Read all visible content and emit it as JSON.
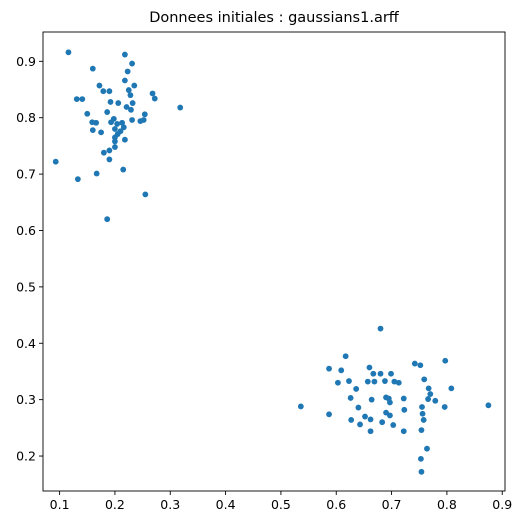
{
  "chart_data": {
    "type": "scatter",
    "title": "Donnees initiales : gaussians1.arff",
    "xlabel": "",
    "ylabel": "",
    "xlim": [
      0.07,
      0.905
    ],
    "ylim": [
      0.138,
      0.952
    ],
    "x_ticks": [
      "0.1",
      "0.2",
      "0.3",
      "0.4",
      "0.5",
      "0.6",
      "0.7",
      "0.8",
      "0.9"
    ],
    "y_ticks": [
      "0.2",
      "0.3",
      "0.4",
      "0.5",
      "0.6",
      "0.7",
      "0.8",
      "0.9"
    ],
    "grid": false,
    "marker_color": "#1f77b4",
    "series": [
      {
        "points": [
          [
            0.116,
            0.916
          ],
          [
            0.218,
            0.912
          ],
          [
            0.231,
            0.896
          ],
          [
            0.16,
            0.887
          ],
          [
            0.223,
            0.882
          ],
          [
            0.218,
            0.866
          ],
          [
            0.172,
            0.857
          ],
          [
            0.235,
            0.857
          ],
          [
            0.179,
            0.847
          ],
          [
            0.19,
            0.847
          ],
          [
            0.225,
            0.849
          ],
          [
            0.228,
            0.84
          ],
          [
            0.268,
            0.843
          ],
          [
            0.272,
            0.834
          ],
          [
            0.131,
            0.833
          ],
          [
            0.141,
            0.833
          ],
          [
            0.192,
            0.828
          ],
          [
            0.206,
            0.826
          ],
          [
            0.232,
            0.826
          ],
          [
            0.221,
            0.819
          ],
          [
            0.318,
            0.818
          ],
          [
            0.229,
            0.814
          ],
          [
            0.186,
            0.81
          ],
          [
            0.15,
            0.807
          ],
          [
            0.254,
            0.806
          ],
          [
            0.198,
            0.798
          ],
          [
            0.231,
            0.796
          ],
          [
            0.246,
            0.794
          ],
          [
            0.252,
            0.796
          ],
          [
            0.159,
            0.792
          ],
          [
            0.166,
            0.791
          ],
          [
            0.193,
            0.792
          ],
          [
            0.213,
            0.791
          ],
          [
            0.204,
            0.789
          ],
          [
            0.216,
            0.783
          ],
          [
            0.2,
            0.78
          ],
          [
            0.16,
            0.778
          ],
          [
            0.175,
            0.774
          ],
          [
            0.21,
            0.776
          ],
          [
            0.205,
            0.771
          ],
          [
            0.2,
            0.765
          ],
          [
            0.218,
            0.761
          ],
          [
            0.2,
            0.758
          ],
          [
            0.2,
            0.748
          ],
          [
            0.19,
            0.742
          ],
          [
            0.18,
            0.738
          ],
          [
            0.19,
            0.726
          ],
          [
            0.093,
            0.722
          ],
          [
            0.215,
            0.708
          ],
          [
            0.167,
            0.701
          ],
          [
            0.133,
            0.691
          ],
          [
            0.255,
            0.664
          ],
          [
            0.186,
            0.62
          ]
        ]
      },
      {
        "points": [
          [
            0.68,
            0.426
          ],
          [
            0.617,
            0.377
          ],
          [
            0.797,
            0.369
          ],
          [
            0.742,
            0.364
          ],
          [
            0.752,
            0.361
          ],
          [
            0.587,
            0.355
          ],
          [
            0.66,
            0.357
          ],
          [
            0.609,
            0.352
          ],
          [
            0.667,
            0.346
          ],
          [
            0.68,
            0.346
          ],
          [
            0.699,
            0.346
          ],
          [
            0.688,
            0.333
          ],
          [
            0.759,
            0.336
          ],
          [
            0.603,
            0.33
          ],
          [
            0.623,
            0.333
          ],
          [
            0.657,
            0.332
          ],
          [
            0.669,
            0.332
          ],
          [
            0.705,
            0.332
          ],
          [
            0.713,
            0.33
          ],
          [
            0.767,
            0.32
          ],
          [
            0.808,
            0.32
          ],
          [
            0.636,
            0.319
          ],
          [
            0.77,
            0.31
          ],
          [
            0.69,
            0.304
          ],
          [
            0.695,
            0.302
          ],
          [
            0.626,
            0.303
          ],
          [
            0.722,
            0.302
          ],
          [
            0.664,
            0.3
          ],
          [
            0.766,
            0.301
          ],
          [
            0.779,
            0.298
          ],
          [
            0.697,
            0.295
          ],
          [
            0.875,
            0.29
          ],
          [
            0.536,
            0.288
          ],
          [
            0.64,
            0.286
          ],
          [
            0.755,
            0.287
          ],
          [
            0.796,
            0.287
          ],
          [
            0.723,
            0.282
          ],
          [
            0.69,
            0.277
          ],
          [
            0.587,
            0.274
          ],
          [
            0.697,
            0.272
          ],
          [
            0.756,
            0.275
          ],
          [
            0.652,
            0.27
          ],
          [
            0.627,
            0.264
          ],
          [
            0.662,
            0.265
          ],
          [
            0.758,
            0.264
          ],
          [
            0.683,
            0.26
          ],
          [
            0.703,
            0.255
          ],
          [
            0.643,
            0.256
          ],
          [
            0.754,
            0.246
          ],
          [
            0.662,
            0.244
          ],
          [
            0.722,
            0.244
          ],
          [
            0.764,
            0.213
          ],
          [
            0.753,
            0.195
          ],
          [
            0.754,
            0.172
          ]
        ]
      }
    ]
  }
}
